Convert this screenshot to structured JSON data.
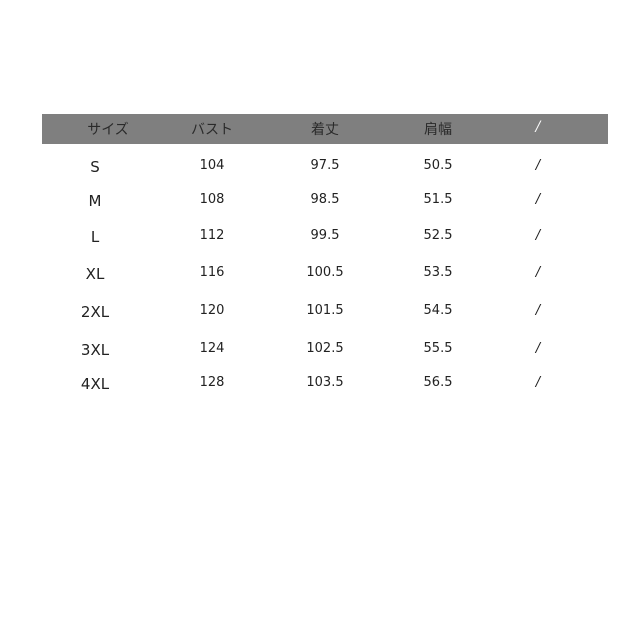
{
  "table": {
    "headers": [
      "サイズ",
      "バスト",
      "着丈",
      "肩幅",
      "/"
    ],
    "rows": [
      [
        "S",
        "104",
        "97.5",
        "50.5",
        "/"
      ],
      [
        "M",
        "108",
        "98.5",
        "51.5",
        "/"
      ],
      [
        "L",
        "112",
        "99.5",
        "52.5",
        "/"
      ],
      [
        "XL",
        "116",
        "100.5",
        "53.5",
        "/"
      ],
      [
        "2XL",
        "120",
        "101.5",
        "54.5",
        "/"
      ],
      [
        "3XL",
        "124",
        "102.5",
        "55.5",
        "/"
      ],
      [
        "4XL",
        "128",
        "103.5",
        "56.5",
        "/"
      ]
    ]
  },
  "colors": {
    "header_bg": "#7f7f7f"
  }
}
